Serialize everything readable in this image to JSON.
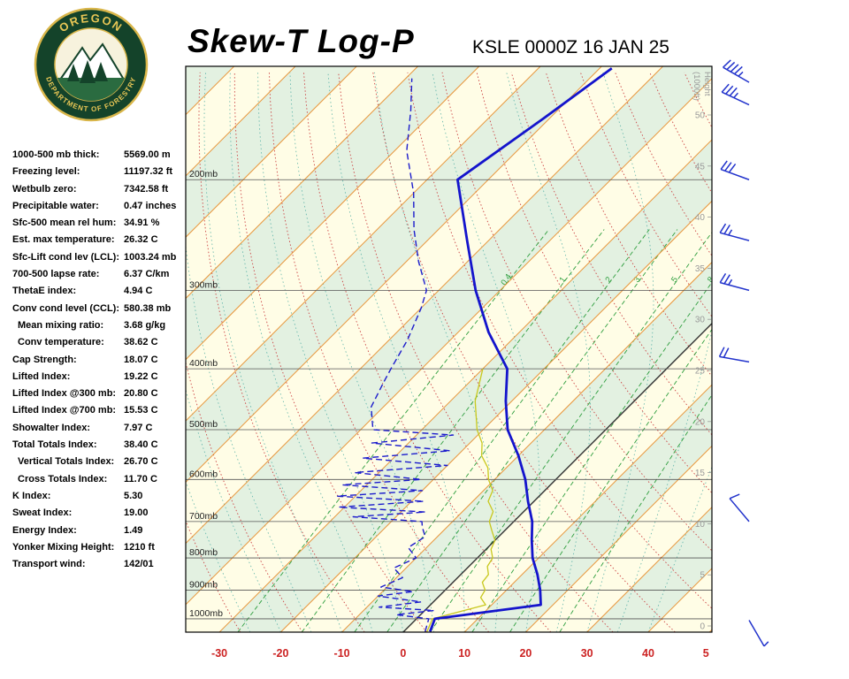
{
  "header": {
    "title": "Skew-T Log-P",
    "station": "KSLE 0000Z 16 JAN 25",
    "logo": {
      "arc_top": "OREGON",
      "arc_bottom": "DEPARTMENT OF FORESTRY"
    }
  },
  "stats": {
    "rows": [
      {
        "label": "1000-500 mb thick:",
        "value": "5569.00 m",
        "indent": false
      },
      {
        "label": "Freezing level:",
        "value": "11197.32 ft",
        "indent": false
      },
      {
        "label": "Wetbulb zero:",
        "value": "7342.58 ft",
        "indent": false
      },
      {
        "label": "Precipitable water:",
        "value": "0.47 inches",
        "indent": false
      },
      {
        "label": "Sfc-500 mean rel hum:",
        "value": "34.91 %",
        "indent": false
      },
      {
        "label": "Est. max temperature:",
        "value": "26.32 C",
        "indent": false
      },
      {
        "label": "Sfc-Lift cond lev (LCL):",
        "value": "1003.24 mb",
        "indent": false
      },
      {
        "label": "700-500 lapse rate:",
        "value": "6.37 C/km",
        "indent": false
      },
      {
        "label": "ThetaE index:",
        "value": "4.94 C",
        "indent": false
      },
      {
        "label": "Conv cond level (CCL):",
        "value": "580.38 mb",
        "indent": false
      },
      {
        "label": "Mean mixing ratio:",
        "value": "3.68 g/kg",
        "indent": true
      },
      {
        "label": "Conv temperature:",
        "value": "38.62 C",
        "indent": true
      },
      {
        "label": "Cap Strength:",
        "value": "18.07 C",
        "indent": false
      },
      {
        "label": "Lifted Index:",
        "value": "19.22 C",
        "indent": false
      },
      {
        "label": "Lifted Index @300 mb:",
        "value": "20.80 C",
        "indent": false
      },
      {
        "label": "Lifted Index @700 mb:",
        "value": "15.53 C",
        "indent": false
      },
      {
        "label": "Showalter Index:",
        "value": "7.97 C",
        "indent": false
      },
      {
        "label": "Total Totals Index:",
        "value": "38.40 C",
        "indent": false
      },
      {
        "label": "Vertical Totals Index:",
        "value": "26.70 C",
        "indent": true
      },
      {
        "label": "Cross Totals Index:",
        "value": "11.70 C",
        "indent": true
      },
      {
        "label": "K Index:",
        "value": "5.30",
        "indent": false
      },
      {
        "label": "Sweat Index:",
        "value": "19.00",
        "indent": false
      },
      {
        "label": "Energy Index:",
        "value": "1.49",
        "indent": false
      },
      {
        "label": "Yonker Mixing Height:",
        "value": "1210 ft",
        "indent": false
      },
      {
        "label": "Transport wind:",
        "value": "142/01",
        "indent": false
      }
    ]
  },
  "chart_data": {
    "type": "line",
    "variant": "skew-t-log-p",
    "title": "Skew-T Log-P",
    "station": "KSLE 0000Z 16 JAN 25",
    "pressure_axis": {
      "scale": "log",
      "top_mb": 132,
      "bottom_mb": 1050,
      "line_levels_mb": [
        200,
        300,
        400,
        500,
        600,
        700,
        800,
        900,
        1000
      ],
      "labels": [
        "200mb",
        "300mb",
        "400mb",
        "500mb",
        "600mb",
        "700mb",
        "800mb",
        "900mb",
        "1000mb"
      ],
      "label_color": "#222222",
      "line_color": "#555555"
    },
    "temp_axis": {
      "units": "C",
      "ticks": [
        -30,
        -20,
        -10,
        0,
        10,
        20,
        30,
        40
      ],
      "extra_tick": {
        "label": "5",
        "value": 50
      },
      "bottom_range_c": [
        -35.5,
        50.4
      ],
      "skew_degrees": 45,
      "label_color": "#cc2222"
    },
    "height_axis": {
      "title_line1": "Height",
      "title_line2": "(1000ft)",
      "ticks_kft": [
        0,
        5,
        10,
        15,
        20,
        25,
        30,
        35,
        40,
        45,
        50
      ],
      "color": "#999999"
    },
    "isotherms": {
      "step_c": 10,
      "color": "#e8963c",
      "zero_line_color": "#333333",
      "band_colors": [
        "#fffde6",
        "#e3f1e1"
      ]
    },
    "dry_adiabats": {
      "theta_start_c": -40,
      "theta_end_c": 150,
      "step_c": 10,
      "color": "#cc4444"
    },
    "moist_adiabats": {
      "surface_temps_c": [
        -25,
        -20,
        -15,
        -10,
        -5,
        0,
        5,
        10,
        15,
        20,
        25,
        30,
        35,
        40
      ],
      "color": "#3aa39b"
    },
    "mixing_ratio": {
      "values_g_kg": [
        0.4,
        1,
        2,
        3,
        5,
        8,
        12,
        20
      ],
      "label_values": [
        0.4,
        1,
        2,
        3,
        5,
        8
      ],
      "label_pressure_mb": 290,
      "color": "#2e9e3e"
    },
    "series": [
      {
        "name": "temperature",
        "color": "#1414cc",
        "style": "solid",
        "width": 2.8,
        "points_p_t": [
          [
            1048,
            4.3
          ],
          [
            1000,
            3
          ],
          [
            950,
            18
          ],
          [
            900,
            15.5
          ],
          [
            850,
            12.5
          ],
          [
            800,
            9
          ],
          [
            750,
            6
          ],
          [
            700,
            3
          ],
          [
            650,
            -1
          ],
          [
            600,
            -5
          ],
          [
            550,
            -10
          ],
          [
            500,
            -16
          ],
          [
            450,
            -21
          ],
          [
            400,
            -26
          ],
          [
            350,
            -35
          ],
          [
            300,
            -44
          ],
          [
            250,
            -53.5
          ],
          [
            200,
            -65
          ],
          [
            160,
            -61
          ],
          [
            133,
            -58
          ]
        ]
      },
      {
        "name": "dewpoint",
        "color": "#1c1ccc",
        "style": "dashed",
        "width": 1.4,
        "points_p_t": [
          [
            1048,
            3.5
          ],
          [
            1000,
            2
          ],
          [
            985,
            -4
          ],
          [
            970,
            1.5
          ],
          [
            958,
            -8
          ],
          [
            940,
            -2
          ],
          [
            920,
            -10
          ],
          [
            905,
            -5
          ],
          [
            890,
            -11
          ],
          [
            860,
            -9
          ],
          [
            830,
            -12
          ],
          [
            800,
            -10
          ],
          [
            770,
            -13
          ],
          [
            740,
            -12
          ],
          [
            715,
            -14
          ],
          [
            700,
            -15
          ],
          [
            688,
            -27
          ],
          [
            676,
            -16
          ],
          [
            664,
            -31
          ],
          [
            650,
            -18
          ],
          [
            638,
            -33
          ],
          [
            625,
            -20
          ],
          [
            612,
            -34
          ],
          [
            600,
            -22
          ],
          [
            585,
            -34
          ],
          [
            570,
            -20
          ],
          [
            555,
            -35
          ],
          [
            540,
            -22
          ],
          [
            525,
            -36
          ],
          [
            510,
            -24
          ],
          [
            500,
            -38
          ],
          [
            460,
            -42
          ],
          [
            420,
            -44
          ],
          [
            400,
            -45
          ],
          [
            360,
            -47
          ],
          [
            320,
            -50
          ],
          [
            300,
            -52
          ],
          [
            270,
            -58
          ],
          [
            240,
            -64
          ],
          [
            210,
            -70
          ],
          [
            180,
            -78
          ],
          [
            155,
            -84
          ],
          [
            138,
            -89
          ]
        ]
      },
      {
        "name": "wetbulb",
        "color": "#c8c81e",
        "style": "solid",
        "width": 1.3,
        "points_p_t": [
          [
            1048,
            3.8
          ],
          [
            1000,
            2.6
          ],
          [
            950,
            9
          ],
          [
            925,
            7
          ],
          [
            900,
            6.5
          ],
          [
            875,
            4.8
          ],
          [
            850,
            4.5
          ],
          [
            825,
            3
          ],
          [
            800,
            2.5
          ],
          [
            775,
            0.8
          ],
          [
            750,
            0
          ],
          [
            725,
            -2
          ],
          [
            700,
            -4
          ],
          [
            675,
            -5
          ],
          [
            650,
            -7.5
          ],
          [
            625,
            -8.5
          ],
          [
            600,
            -11
          ],
          [
            575,
            -13
          ],
          [
            550,
            -16
          ],
          [
            525,
            -18
          ],
          [
            500,
            -21
          ],
          [
            450,
            -26
          ],
          [
            400,
            -30
          ]
        ]
      }
    ],
    "wind_barbs": {
      "color": "#2233cc",
      "barbs": [
        {
          "p": 140,
          "dir_deg": 300,
          "speed_kt": 45
        },
        {
          "p": 152,
          "dir_deg": 295,
          "speed_kt": 35
        },
        {
          "p": 200,
          "dir_deg": 290,
          "speed_kt": 30
        },
        {
          "p": 250,
          "dir_deg": 285,
          "speed_kt": 25
        },
        {
          "p": 300,
          "dir_deg": 285,
          "speed_kt": 25
        },
        {
          "p": 390,
          "dir_deg": 280,
          "speed_kt": 20
        },
        {
          "p": 700,
          "dir_deg": 320,
          "speed_kt": 10
        },
        {
          "p": 1005,
          "dir_deg": 150,
          "speed_kt": 5
        }
      ]
    }
  }
}
